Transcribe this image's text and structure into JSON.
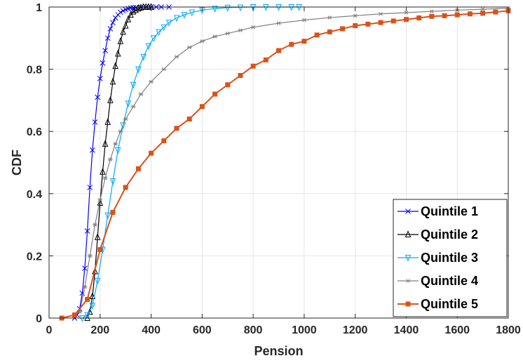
{
  "chart_data": {
    "type": "line",
    "title": "",
    "xlabel": "Pension",
    "ylabel": "CDF",
    "xlim": [
      0,
      1800
    ],
    "ylim": [
      0,
      1
    ],
    "grid": true,
    "legend_position": "bottom-right",
    "x_ticks": [
      "0",
      "200",
      "400",
      "600",
      "800",
      "1000",
      "1200",
      "1400",
      "1600",
      "1800"
    ],
    "y_ticks": [
      "0",
      "0.2",
      "0.4",
      "0.6",
      "0.8",
      "1"
    ],
    "series": [
      {
        "name": "Quintile 1",
        "color": "#0000ff",
        "marker": "x",
        "x": [
          100,
          110,
          120,
          130,
          140,
          150,
          160,
          170,
          180,
          190,
          200,
          210,
          220,
          230,
          240,
          250,
          260,
          270,
          280,
          290,
          300,
          310,
          320,
          330,
          340,
          360,
          380,
          400,
          420,
          440,
          470
        ],
        "y": [
          0,
          0.01,
          0.03,
          0.08,
          0.16,
          0.28,
          0.42,
          0.54,
          0.63,
          0.71,
          0.77,
          0.82,
          0.86,
          0.9,
          0.93,
          0.95,
          0.965,
          0.975,
          0.983,
          0.988,
          0.992,
          0.995,
          0.997,
          0.998,
          0.999,
          1,
          1,
          1,
          1,
          1,
          1
        ]
      },
      {
        "name": "Quintile 2",
        "color": "#000000",
        "marker": "triangle-up",
        "x": [
          150,
          160,
          170,
          180,
          190,
          200,
          210,
          220,
          230,
          240,
          250,
          260,
          270,
          280,
          290,
          300,
          310,
          320,
          330,
          340,
          350,
          360,
          370,
          380,
          390,
          400
        ],
        "y": [
          0,
          0.02,
          0.07,
          0.15,
          0.26,
          0.37,
          0.47,
          0.56,
          0.63,
          0.7,
          0.76,
          0.81,
          0.85,
          0.89,
          0.92,
          0.94,
          0.96,
          0.975,
          0.985,
          0.99,
          0.995,
          0.998,
          1,
          1,
          1,
          1
        ]
      },
      {
        "name": "Quintile 3",
        "color": "#00aaff",
        "marker": "triangle-down",
        "x": [
          130,
          150,
          170,
          190,
          210,
          230,
          250,
          270,
          290,
          310,
          330,
          350,
          370,
          390,
          410,
          430,
          450,
          470,
          500,
          530,
          560,
          600,
          650,
          700,
          750,
          800,
          850,
          900,
          950,
          980
        ],
        "y": [
          0,
          0.01,
          0.04,
          0.12,
          0.22,
          0.33,
          0.44,
          0.54,
          0.62,
          0.69,
          0.75,
          0.8,
          0.84,
          0.875,
          0.9,
          0.92,
          0.935,
          0.95,
          0.965,
          0.975,
          0.983,
          0.99,
          0.995,
          0.998,
          0.999,
          1,
          1,
          1,
          1,
          1
        ]
      },
      {
        "name": "Quintile 4",
        "color": "#7f7f7f",
        "marker": "asterisk",
        "x": [
          120,
          140,
          160,
          180,
          200,
          220,
          240,
          260,
          280,
          300,
          330,
          360,
          400,
          450,
          500,
          550,
          600,
          650,
          700,
          750,
          800,
          900,
          1000,
          1100,
          1200,
          1300,
          1400,
          1500,
          1600,
          1700,
          1800
        ],
        "y": [
          0.02,
          0.1,
          0.2,
          0.3,
          0.38,
          0.45,
          0.51,
          0.56,
          0.6,
          0.64,
          0.68,
          0.72,
          0.76,
          0.8,
          0.84,
          0.87,
          0.89,
          0.905,
          0.915,
          0.925,
          0.935,
          0.948,
          0.958,
          0.966,
          0.972,
          0.978,
          0.982,
          0.986,
          0.99,
          0.993,
          0.996
        ]
      },
      {
        "name": "Quintile 5",
        "color": "#d95319",
        "marker": "square",
        "x": [
          50,
          100,
          150,
          200,
          250,
          300,
          350,
          400,
          450,
          500,
          550,
          600,
          650,
          700,
          750,
          800,
          850,
          900,
          950,
          1000,
          1050,
          1100,
          1150,
          1200,
          1250,
          1300,
          1350,
          1400,
          1450,
          1500,
          1550,
          1600,
          1650,
          1700,
          1750,
          1800
        ],
        "y": [
          0,
          0.01,
          0.06,
          0.22,
          0.34,
          0.42,
          0.48,
          0.53,
          0.57,
          0.61,
          0.64,
          0.68,
          0.72,
          0.75,
          0.78,
          0.81,
          0.83,
          0.86,
          0.88,
          0.89,
          0.91,
          0.92,
          0.93,
          0.94,
          0.945,
          0.95,
          0.955,
          0.96,
          0.965,
          0.97,
          0.972,
          0.975,
          0.978,
          0.98,
          0.984,
          0.988
        ]
      }
    ]
  }
}
